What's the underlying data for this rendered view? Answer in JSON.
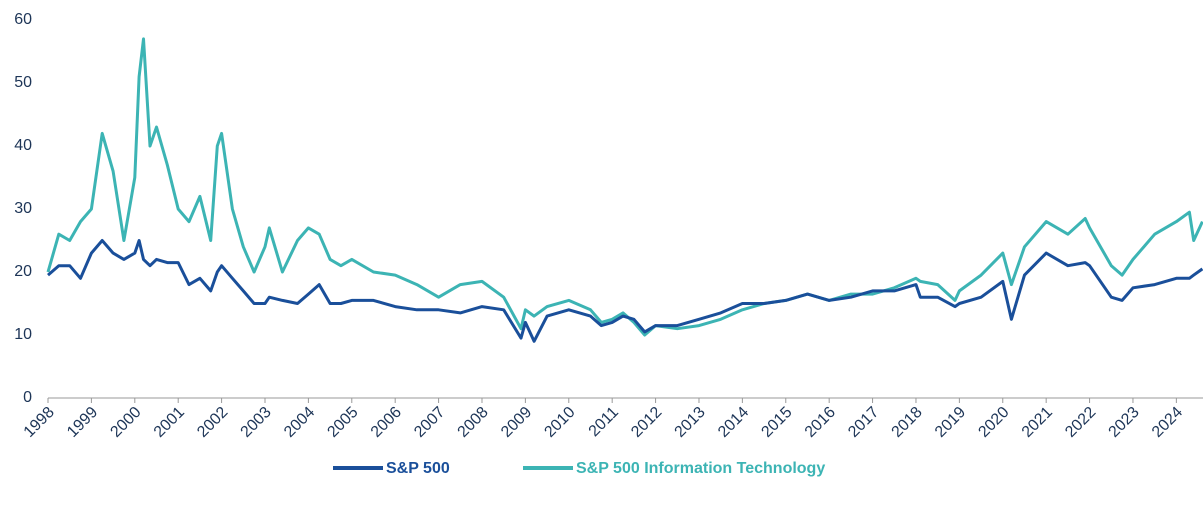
{
  "chart_data": {
    "type": "line",
    "x": [
      1998,
      1998.25,
      1998.5,
      1998.75,
      1999,
      1999.25,
      1999.5,
      1999.75,
      2000,
      2000.1,
      2000.2,
      2000.35,
      2000.5,
      2000.75,
      2001,
      2001.25,
      2001.5,
      2001.75,
      2001.9,
      2002,
      2002.25,
      2002.5,
      2002.75,
      2003,
      2003.1,
      2003.4,
      2003.75,
      2004,
      2004.25,
      2004.5,
      2004.75,
      2005,
      2005.5,
      2006,
      2006.5,
      2007,
      2007.5,
      2008,
      2008.5,
      2008.9,
      2009,
      2009.2,
      2009.5,
      2010,
      2010.5,
      2010.75,
      2011,
      2011.25,
      2011.5,
      2011.75,
      2012,
      2012.5,
      2013,
      2013.5,
      2014,
      2014.5,
      2015,
      2015.5,
      2016,
      2016.5,
      2017,
      2017.5,
      2018,
      2018.1,
      2018.5,
      2018.9,
      2019,
      2019.5,
      2020,
      2020.2,
      2020.5,
      2021,
      2021.5,
      2021.9,
      2022,
      2022.5,
      2022.75,
      2023,
      2023.5,
      2024,
      2024.3,
      2024.4,
      2024.6
    ],
    "series": [
      {
        "name": "S&P 500",
        "color": "#1a4f9a",
        "values": [
          19.5,
          21,
          21,
          19,
          23,
          25,
          23,
          22,
          23,
          25,
          22,
          21,
          22,
          21.5,
          21.5,
          18,
          19,
          17,
          20,
          21,
          19,
          17,
          15,
          15,
          16,
          15.5,
          15,
          16.5,
          18,
          15,
          15,
          15.5,
          15.5,
          14.5,
          14,
          14,
          13.5,
          14.5,
          14,
          9.5,
          12,
          9,
          13,
          14,
          13,
          11.5,
          12,
          13,
          12.5,
          10.5,
          11.5,
          11.5,
          12.5,
          13.5,
          15,
          15,
          15.5,
          16.5,
          15.5,
          16,
          17,
          17,
          18,
          16,
          16,
          14.5,
          15,
          16,
          18.5,
          12.5,
          19.5,
          23,
          21,
          21.5,
          21,
          16,
          15.5,
          17.5,
          18,
          19,
          19,
          19.5,
          20.5
        ]
      },
      {
        "name": "S&P 500 Information Technology",
        "color": "#3cb4b4",
        "values": [
          20,
          26,
          25,
          28,
          30,
          42,
          36,
          25,
          35,
          51,
          57,
          40,
          43,
          37,
          30,
          28,
          32,
          25,
          40,
          42,
          30,
          24,
          20,
          24,
          27,
          20,
          25,
          27,
          26,
          22,
          21,
          22,
          20,
          19.5,
          18,
          16,
          18,
          18.5,
          16,
          11,
          14,
          13,
          14.5,
          15.5,
          14,
          12,
          12.5,
          13.5,
          12,
          10,
          11.5,
          11,
          11.5,
          12.5,
          14,
          15,
          15.5,
          16.5,
          15.5,
          16.5,
          16.5,
          17.5,
          19,
          18.5,
          18,
          15.5,
          17,
          19.5,
          23,
          18,
          24,
          28,
          26,
          28.5,
          27,
          21,
          19.5,
          22,
          26,
          28,
          29.5,
          25,
          28
        ]
      }
    ],
    "xlim": [
      1998,
      2024.6
    ],
    "xticks": [
      1998,
      1999,
      2000,
      2001,
      2002,
      2003,
      2004,
      2005,
      2006,
      2007,
      2008,
      2009,
      2010,
      2011,
      2012,
      2013,
      2014,
      2015,
      2016,
      2017,
      2018,
      2019,
      2020,
      2021,
      2022,
      2023,
      2024
    ],
    "ylim": [
      0,
      60
    ],
    "yticks": [
      0,
      10,
      20,
      30,
      40,
      50,
      60
    ],
    "legend": "bottom"
  }
}
